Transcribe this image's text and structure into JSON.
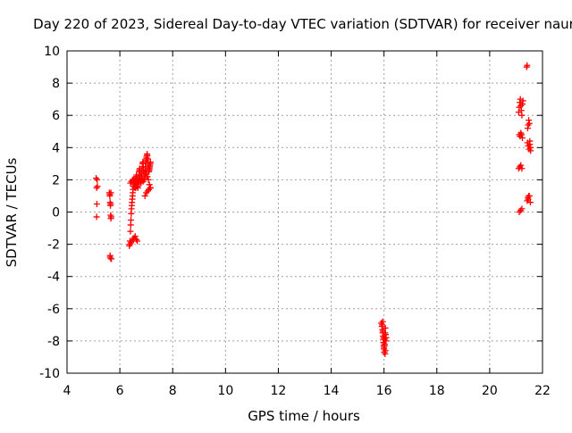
{
  "chart_data": {
    "type": "scatter",
    "title": "Day 220 of 2023, Sidereal Day-to-day VTEC variation (SDTVAR) for receiver naur",
    "xlabel": "GPS time / hours",
    "ylabel": "SDTVAR / TECUs",
    "xlim": [
      4,
      22
    ],
    "ylim": [
      -10,
      10
    ],
    "xticks": [
      4,
      6,
      8,
      10,
      12,
      14,
      16,
      18,
      20,
      22
    ],
    "yticks": [
      -10,
      -8,
      -6,
      -4,
      -2,
      0,
      2,
      4,
      6,
      8,
      10
    ],
    "grid": true,
    "marker": "+",
    "series": [
      {
        "name": "SDTVAR",
        "color": "#ff0000",
        "x": [
          5.1,
          5.12,
          5.12,
          5.13,
          5.14,
          5.15,
          5.6,
          5.62,
          5.63,
          5.64,
          5.65,
          5.66,
          5.63,
          5.66,
          5.62,
          5.65,
          5.67,
          5.63,
          5.66,
          5.68,
          6.36,
          6.38,
          6.4,
          6.41,
          6.42,
          6.43,
          6.44,
          6.45,
          6.46,
          6.47,
          6.48,
          6.49,
          6.5,
          6.51,
          6.52,
          6.53,
          6.54,
          6.55,
          6.56,
          6.57,
          6.58,
          6.59,
          6.6,
          6.61,
          6.62,
          6.63,
          6.64,
          6.65,
          6.66,
          6.67,
          6.68,
          6.69,
          6.7,
          6.71,
          6.72,
          6.73,
          6.74,
          6.75,
          6.76,
          6.77,
          6.78,
          6.79,
          6.8,
          6.81,
          6.82,
          6.83,
          6.84,
          6.85,
          6.86,
          6.87,
          6.88,
          6.89,
          6.9,
          6.91,
          6.92,
          6.93,
          6.94,
          6.95,
          6.96,
          6.97,
          6.98,
          6.99,
          7.0,
          7.01,
          7.02,
          7.03,
          7.04,
          7.05,
          7.06,
          7.07,
          7.08,
          7.09,
          7.1,
          7.11,
          7.12,
          7.13,
          7.14,
          7.15,
          7.16,
          6.4,
          6.44,
          6.48,
          6.52,
          6.56,
          6.6,
          6.64,
          6.68,
          6.72,
          6.76,
          6.8,
          6.84,
          6.88,
          6.92,
          6.96,
          7.0,
          7.04,
          7.08,
          7.12,
          7.16,
          6.95,
          7.0,
          7.05,
          7.1,
          7.15,
          6.38,
          6.42,
          6.46,
          6.5,
          6.54,
          6.58,
          6.62,
          6.66,
          15.9,
          15.92,
          15.94,
          15.95,
          15.96,
          15.97,
          15.98,
          15.99,
          16.0,
          16.01,
          16.02,
          16.03,
          16.04,
          16.05,
          16.06,
          16.07,
          16.08,
          15.93,
          15.96,
          15.99,
          16.02,
          16.05,
          15.95,
          16.0,
          16.04,
          21.1,
          21.12,
          21.14,
          21.16,
          21.18,
          21.2,
          21.22,
          21.24,
          21.26,
          21.12,
          21.15,
          21.18,
          21.21,
          21.24,
          21.1,
          21.14,
          21.18,
          21.22,
          21.12,
          21.17,
          21.22,
          21.4,
          21.42,
          21.44,
          21.46,
          21.48,
          21.5,
          21.52,
          21.54,
          21.43,
          21.46,
          21.49,
          21.52,
          21.55,
          21.42,
          21.46,
          21.5,
          21.54,
          21.45,
          21.48
        ],
        "y": [
          2.1,
          1.5,
          -0.3,
          0.5,
          2.0,
          1.6,
          1.2,
          1.0,
          0.6,
          0.4,
          -0.2,
          -0.4,
          -2.7,
          -2.9,
          1.1,
          0.5,
          -0.3,
          -2.8,
          1.2,
          -2.9,
          -2.1,
          -1.8,
          -1.2,
          -0.8,
          -0.5,
          -0.1,
          0.2,
          0.4,
          0.6,
          0.8,
          1.0,
          1.2,
          1.4,
          1.6,
          1.8,
          1.9,
          2.0,
          1.9,
          1.7,
          1.5,
          1.6,
          1.8,
          2.0,
          2.1,
          2.2,
          2.3,
          2.2,
          2.0,
          1.8,
          1.6,
          1.5,
          1.7,
          1.9,
          2.1,
          2.3,
          2.5,
          2.6,
          2.7,
          2.5,
          2.3,
          2.1,
          1.9,
          1.8,
          2.0,
          2.2,
          2.4,
          2.6,
          2.8,
          3.0,
          3.1,
          3.0,
          2.8,
          2.6,
          2.4,
          2.2,
          2.0,
          2.2,
          2.4,
          2.6,
          2.8,
          3.0,
          3.2,
          3.3,
          3.4,
          3.5,
          3.6,
          3.5,
          3.3,
          3.1,
          2.9,
          2.7,
          2.6,
          2.5,
          2.6,
          2.7,
          2.8,
          2.9,
          3.0,
          3.1,
          1.8,
          1.9,
          2.0,
          1.8,
          1.6,
          1.5,
          1.6,
          1.7,
          1.9,
          2.0,
          2.1,
          2.0,
          1.9,
          2.1,
          2.3,
          2.4,
          2.2,
          2.0,
          1.7,
          1.5,
          1.0,
          1.2,
          1.3,
          1.4,
          1.5,
          -2.0,
          -1.9,
          -1.8,
          -1.7,
          -1.6,
          -1.5,
          -1.7,
          -1.8,
          -6.9,
          -7.1,
          -7.3,
          -7.5,
          -7.7,
          -7.9,
          -8.1,
          -8.3,
          -8.5,
          -8.7,
          -8.3,
          -7.9,
          -7.5,
          -7.2,
          -7.6,
          -8.0,
          -7.8,
          -7.0,
          -7.4,
          -7.8,
          -8.2,
          -8.6,
          -6.8,
          -8.4,
          -8.8,
          6.2,
          6.5,
          6.8,
          7.0,
          6.6,
          6.3,
          6.0,
          6.7,
          6.9,
          4.8,
          4.7,
          4.9,
          4.8,
          4.6,
          2.7,
          2.8,
          2.9,
          2.7,
          0.0,
          0.1,
          0.2,
          9.0,
          9.1,
          5.2,
          5.4,
          5.7,
          5.5,
          4.2,
          4.0,
          4.3,
          4.1,
          3.9,
          4.4,
          3.8,
          0.7,
          0.8,
          1.0,
          0.6,
          0.9,
          1.0
        ]
      }
    ]
  }
}
